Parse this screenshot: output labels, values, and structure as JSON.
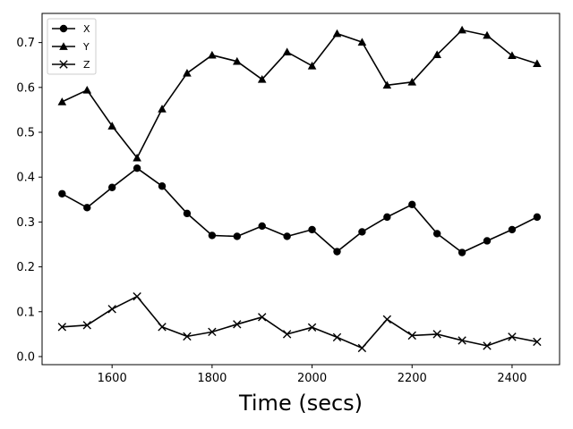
{
  "chart_data": {
    "type": "line",
    "title": "",
    "xlabel": "Time (secs)",
    "ylabel": "",
    "xlim": [
      1460,
      2495
    ],
    "ylim": [
      -0.018,
      0.765
    ],
    "xticks": [
      1600,
      1800,
      2000,
      2200,
      2400
    ],
    "yticks": [
      0.0,
      0.1,
      0.2,
      0.3,
      0.4,
      0.5,
      0.6,
      0.7
    ],
    "ytick_labels": [
      "0.0",
      "0.1",
      "0.2",
      "0.3",
      "0.4",
      "0.5",
      "0.6",
      "0.7"
    ],
    "grid": false,
    "legend_position": "top-left",
    "line_color": "#000000",
    "x": [
      1500,
      1550,
      1600,
      1650,
      1700,
      1750,
      1800,
      1850,
      1900,
      1950,
      2000,
      2050,
      2100,
      2150,
      2200,
      2250,
      2300,
      2350,
      2400,
      2450
    ],
    "series": [
      {
        "name": "X",
        "marker": "circle",
        "values": [
          0.363,
          0.332,
          0.377,
          0.42,
          0.38,
          0.319,
          0.27,
          0.268,
          0.291,
          0.268,
          0.283,
          0.234,
          0.278,
          0.311,
          0.339,
          0.274,
          0.232,
          0.258,
          0.283,
          0.311
        ]
      },
      {
        "name": "Y",
        "marker": "triangle",
        "values": [
          0.568,
          0.594,
          0.514,
          0.443,
          0.552,
          0.632,
          0.672,
          0.658,
          0.618,
          0.679,
          0.648,
          0.72,
          0.701,
          0.605,
          0.612,
          0.673,
          0.728,
          0.716,
          0.671,
          0.653
        ]
      },
      {
        "name": "Z",
        "marker": "x",
        "values": [
          0.066,
          0.07,
          0.106,
          0.134,
          0.066,
          0.045,
          0.055,
          0.072,
          0.088,
          0.05,
          0.065,
          0.043,
          0.019,
          0.083,
          0.047,
          0.05,
          0.036,
          0.024,
          0.044,
          0.033
        ]
      }
    ]
  }
}
